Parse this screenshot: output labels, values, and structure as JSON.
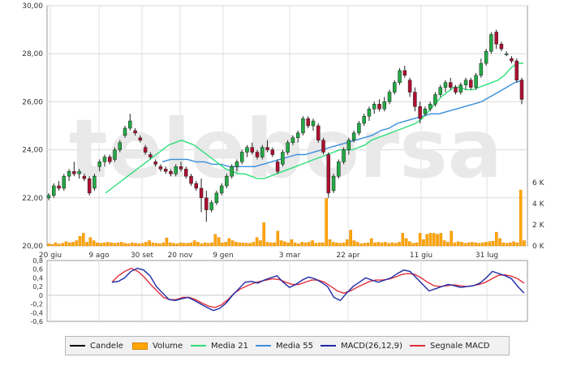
{
  "watermark": "teleborsa",
  "legend": [
    {
      "label": "Candele",
      "color": "#000000"
    },
    {
      "label": "Volume",
      "color": "#ffa500"
    },
    {
      "label": "Media 21",
      "color": "#2ede7a"
    },
    {
      "label": "Media 55",
      "color": "#3a8fdc"
    },
    {
      "label": "MACD(26,12,9)",
      "color": "#1a2aa8"
    },
    {
      "label": "Segnale MACD",
      "color": "#e0303a"
    }
  ],
  "chart_data": [
    {
      "type": "candlestick",
      "title": "",
      "x_tick_labels": [
        "20 giu",
        "9 ago",
        "30 set",
        "20 nov",
        "9 gen",
        "3 mar",
        "22 apr",
        "11 giu",
        "31 lug"
      ],
      "y_ticks": [
        "30,00",
        "28,00",
        "26,00",
        "24,00",
        "22,00",
        "20,00"
      ],
      "ylim": [
        20,
        30
      ],
      "grid": true,
      "colors": {
        "up": "#22aa44",
        "down": "#b01030",
        "ma21": "#2ede7a",
        "ma55": "#3a8fdc"
      },
      "candles_ohlc": [
        [
          22.0,
          22.2,
          21.9,
          22.1
        ],
        [
          22.1,
          22.6,
          22.0,
          22.5
        ],
        [
          22.5,
          22.7,
          22.3,
          22.4
        ],
        [
          22.4,
          23.0,
          22.3,
          22.9
        ],
        [
          22.9,
          23.2,
          22.7,
          23.1
        ],
        [
          23.1,
          23.5,
          22.9,
          23.0
        ],
        [
          23.0,
          23.2,
          22.8,
          23.1
        ],
        [
          22.9,
          23.0,
          22.7,
          22.8
        ],
        [
          22.8,
          22.9,
          22.1,
          22.2
        ],
        [
          22.4,
          23.0,
          22.3,
          22.9
        ],
        [
          23.3,
          23.6,
          23.1,
          23.5
        ],
        [
          23.5,
          23.8,
          23.3,
          23.7
        ],
        [
          23.7,
          23.8,
          23.4,
          23.5
        ],
        [
          23.6,
          24.1,
          23.5,
          24.0
        ],
        [
          24.0,
          24.4,
          23.9,
          24.3
        ],
        [
          24.6,
          25.0,
          24.5,
          24.9
        ],
        [
          24.9,
          25.5,
          24.8,
          25.2
        ],
        [
          24.8,
          24.9,
          24.6,
          24.7
        ],
        [
          24.5,
          24.6,
          24.3,
          24.4
        ],
        [
          24.1,
          24.2,
          23.8,
          23.9
        ],
        [
          23.8,
          23.9,
          23.6,
          23.7
        ],
        [
          23.5,
          23.6,
          23.3,
          23.4
        ],
        [
          23.3,
          23.4,
          23.1,
          23.2
        ],
        [
          23.2,
          23.3,
          23.0,
          23.1
        ],
        [
          23.1,
          23.2,
          22.9,
          23.0
        ],
        [
          23.0,
          23.4,
          22.9,
          23.3
        ],
        [
          23.3,
          23.5,
          23.1,
          23.2
        ],
        [
          23.2,
          23.3,
          22.8,
          22.9
        ],
        [
          22.9,
          23.0,
          22.5,
          22.6
        ],
        [
          22.6,
          22.7,
          22.3,
          22.4
        ],
        [
          22.4,
          22.8,
          21.4,
          22.0
        ],
        [
          22.0,
          22.3,
          21.0,
          21.5
        ],
        [
          21.5,
          21.9,
          21.4,
          21.8
        ],
        [
          21.8,
          22.3,
          21.7,
          22.2
        ],
        [
          22.2,
          22.6,
          22.1,
          22.5
        ],
        [
          22.5,
          23.0,
          22.4,
          22.9
        ],
        [
          22.9,
          23.4,
          22.8,
          23.3
        ],
        [
          23.3,
          23.6,
          23.1,
          23.5
        ],
        [
          23.5,
          24.0,
          23.4,
          23.9
        ],
        [
          23.9,
          24.2,
          23.7,
          24.1
        ],
        [
          24.1,
          24.3,
          23.8,
          23.9
        ],
        [
          23.9,
          24.0,
          23.6,
          23.7
        ],
        [
          23.7,
          24.2,
          23.6,
          24.1
        ],
        [
          24.1,
          24.4,
          23.9,
          24.0
        ],
        [
          24.0,
          24.1,
          23.7,
          23.8
        ],
        [
          23.5,
          23.6,
          23.0,
          23.1
        ],
        [
          23.4,
          24.0,
          23.3,
          23.9
        ],
        [
          23.9,
          24.4,
          23.8,
          24.3
        ],
        [
          24.3,
          24.6,
          24.2,
          24.5
        ],
        [
          24.5,
          24.8,
          24.3,
          24.7
        ],
        [
          24.7,
          25.4,
          24.6,
          25.3
        ],
        [
          25.3,
          25.4,
          24.9,
          25.0
        ],
        [
          25.0,
          25.3,
          24.8,
          25.2
        ],
        [
          25.0,
          25.1,
          24.3,
          24.4
        ],
        [
          24.4,
          24.5,
          23.8,
          23.9
        ],
        [
          23.8,
          23.9,
          22.0,
          22.2
        ],
        [
          22.3,
          23.0,
          22.2,
          22.9
        ],
        [
          22.9,
          23.6,
          22.8,
          23.5
        ],
        [
          23.5,
          24.1,
          23.4,
          24.0
        ],
        [
          24.0,
          24.5,
          23.8,
          24.4
        ],
        [
          24.4,
          24.8,
          24.3,
          24.7
        ],
        [
          24.7,
          25.2,
          24.6,
          25.1
        ],
        [
          25.1,
          25.5,
          25.0,
          25.4
        ],
        [
          25.4,
          25.8,
          25.2,
          25.7
        ],
        [
          25.7,
          26.0,
          25.5,
          25.9
        ],
        [
          25.9,
          26.1,
          25.6,
          25.7
        ],
        [
          25.7,
          26.2,
          25.6,
          26.0
        ],
        [
          26.0,
          26.5,
          25.9,
          26.4
        ],
        [
          26.4,
          26.9,
          26.3,
          26.8
        ],
        [
          26.8,
          27.4,
          26.7,
          27.3
        ],
        [
          27.3,
          27.5,
          27.0,
          27.1
        ],
        [
          26.9,
          27.0,
          26.2,
          26.4
        ],
        [
          26.4,
          26.6,
          25.6,
          25.8
        ],
        [
          25.8,
          26.0,
          25.1,
          25.3
        ],
        [
          25.5,
          25.8,
          25.4,
          25.7
        ],
        [
          25.7,
          26.0,
          25.6,
          25.9
        ],
        [
          25.9,
          26.4,
          25.8,
          26.3
        ],
        [
          26.3,
          26.7,
          26.2,
          26.6
        ],
        [
          26.6,
          26.9,
          26.4,
          26.8
        ],
        [
          26.8,
          27.0,
          26.5,
          26.6
        ],
        [
          26.6,
          26.7,
          26.3,
          26.4
        ],
        [
          26.4,
          26.8,
          26.3,
          26.7
        ],
        [
          26.7,
          27.0,
          26.5,
          26.9
        ],
        [
          26.9,
          27.0,
          26.5,
          26.6
        ],
        [
          26.6,
          27.2,
          26.5,
          27.1
        ],
        [
          27.1,
          27.8,
          27.0,
          27.6
        ],
        [
          27.6,
          28.2,
          27.5,
          28.1
        ],
        [
          28.1,
          28.9,
          28.0,
          28.8
        ],
        [
          28.9,
          29.0,
          28.2,
          28.4
        ],
        [
          28.4,
          28.5,
          28.1,
          28.2
        ],
        [
          28.0,
          28.1,
          27.9,
          28.0
        ],
        [
          27.8,
          27.9,
          27.6,
          27.7
        ],
        [
          27.7,
          27.8,
          26.8,
          26.9
        ],
        [
          26.9,
          27.0,
          25.9,
          26.1
        ]
      ],
      "ma21": [
        22.2,
        22.4,
        22.6,
        22.8,
        23.0,
        23.2,
        23.4,
        23.6,
        23.8,
        24.0,
        24.2,
        24.3,
        24.4,
        24.3,
        24.2,
        24.0,
        23.8,
        23.6,
        23.4,
        23.2,
        23.1,
        23.0,
        23.0,
        22.9,
        22.8,
        22.8,
        22.9,
        23.0,
        23.1,
        23.2,
        23.3,
        23.4,
        23.5,
        23.6,
        23.7,
        23.8,
        23.9,
        24.0,
        24.0,
        24.0,
        24.1,
        24.2,
        24.4,
        24.5,
        24.6,
        24.7,
        24.8,
        24.9,
        25.0,
        25.1,
        25.3,
        25.6,
        25.9,
        26.2,
        26.4,
        26.6,
        26.6,
        26.5,
        26.5,
        26.6,
        26.7,
        26.8,
        26.9,
        27.1,
        27.4,
        27.6,
        27.6
      ],
      "ma55": [
        23.5,
        23.6,
        23.6,
        23.6,
        23.5,
        23.5,
        23.4,
        23.4,
        23.3,
        23.3,
        23.3,
        23.3,
        23.4,
        23.5,
        23.6,
        23.7,
        23.8,
        23.8,
        23.9,
        24.0,
        24.1,
        24.2,
        24.3,
        24.4,
        24.5,
        24.6,
        24.8,
        24.9,
        25.1,
        25.2,
        25.3,
        25.4,
        25.5,
        25.5,
        25.6,
        25.7,
        25.8,
        25.9,
        26.0,
        26.2,
        26.4,
        26.6,
        26.8,
        26.9
      ]
    },
    {
      "type": "bar",
      "title": "",
      "y_ticks": [
        "6 K",
        "4 K",
        "2 K",
        "0 K"
      ],
      "ylim": [
        0,
        7000
      ],
      "values": [
        200,
        150,
        300,
        180,
        250,
        400,
        300,
        350,
        500,
        900,
        1200,
        350,
        800,
        500,
        300,
        250,
        300,
        350,
        300,
        250,
        300,
        350,
        250,
        200,
        300,
        250,
        200,
        250,
        350,
        500,
        300,
        250,
        200,
        300,
        750,
        300,
        250,
        200,
        300,
        250,
        250,
        300,
        500,
        350,
        200,
        300,
        250,
        300,
        1100,
        800,
        300,
        350,
        700,
        500,
        350,
        300,
        300,
        250,
        250,
        350,
        800,
        500,
        2200,
        350,
        300,
        300,
        1400,
        500,
        400,
        300,
        600,
        300,
        200,
        350,
        300,
        350,
        500,
        250,
        300,
        300,
        4500,
        600,
        350,
        300,
        250,
        300,
        600,
        1500,
        500,
        350,
        200,
        250,
        300,
        700,
        300,
        350,
        300,
        350,
        250,
        300,
        250,
        350,
        1200,
        700,
        400,
        250,
        300,
        1200,
        600,
        1100,
        1200,
        1200,
        1100,
        1200,
        500,
        350,
        1400,
        300,
        400,
        350,
        250,
        300,
        350,
        300,
        250,
        300,
        350,
        400,
        450,
        1300,
        700,
        300,
        250,
        300,
        400,
        300,
        5300,
        500
      ]
    },
    {
      "type": "line",
      "title": "",
      "y_ticks": [
        "0,8",
        "0,6",
        "0,4",
        "0,2",
        "0",
        "-0,2",
        "-0,4",
        "-0,6"
      ],
      "ylim": [
        -0.6,
        0.8
      ],
      "series": [
        {
          "name": "MACD(26,12,9)",
          "values": [
            0.3,
            0.32,
            0.4,
            0.55,
            0.62,
            0.58,
            0.45,
            0.2,
            0.05,
            -0.1,
            -0.12,
            -0.08,
            -0.05,
            -0.12,
            -0.2,
            -0.28,
            -0.35,
            -0.3,
            -0.18,
            0.0,
            0.15,
            0.3,
            0.32,
            0.28,
            0.35,
            0.4,
            0.45,
            0.3,
            0.18,
            0.25,
            0.35,
            0.42,
            0.38,
            0.3,
            0.2,
            -0.05,
            -0.12,
            0.05,
            0.2,
            0.3,
            0.4,
            0.35,
            0.3,
            0.35,
            0.4,
            0.5,
            0.58,
            0.55,
            0.4,
            0.25,
            0.1,
            0.15,
            0.2,
            0.25,
            0.22,
            0.18,
            0.2,
            0.22,
            0.28,
            0.4,
            0.55,
            0.5,
            0.45,
            0.38,
            0.2,
            0.05
          ]
        },
        {
          "name": "Segnale MACD",
          "values": [
            0.3,
            0.45,
            0.55,
            0.62,
            0.55,
            0.42,
            0.25,
            0.1,
            -0.05,
            -0.1,
            -0.1,
            -0.05,
            -0.05,
            -0.1,
            -0.18,
            -0.25,
            -0.28,
            -0.22,
            -0.1,
            0.05,
            0.15,
            0.22,
            0.28,
            0.32,
            0.35,
            0.38,
            0.36,
            0.3,
            0.25,
            0.25,
            0.3,
            0.35,
            0.35,
            0.3,
            0.2,
            0.1,
            0.05,
            0.1,
            0.18,
            0.25,
            0.32,
            0.35,
            0.35,
            0.37,
            0.42,
            0.48,
            0.5,
            0.48,
            0.4,
            0.3,
            0.22,
            0.2,
            0.22,
            0.24,
            0.22,
            0.2,
            0.22,
            0.25,
            0.3,
            0.38,
            0.46,
            0.47,
            0.44,
            0.38,
            0.28
          ]
        }
      ]
    }
  ]
}
